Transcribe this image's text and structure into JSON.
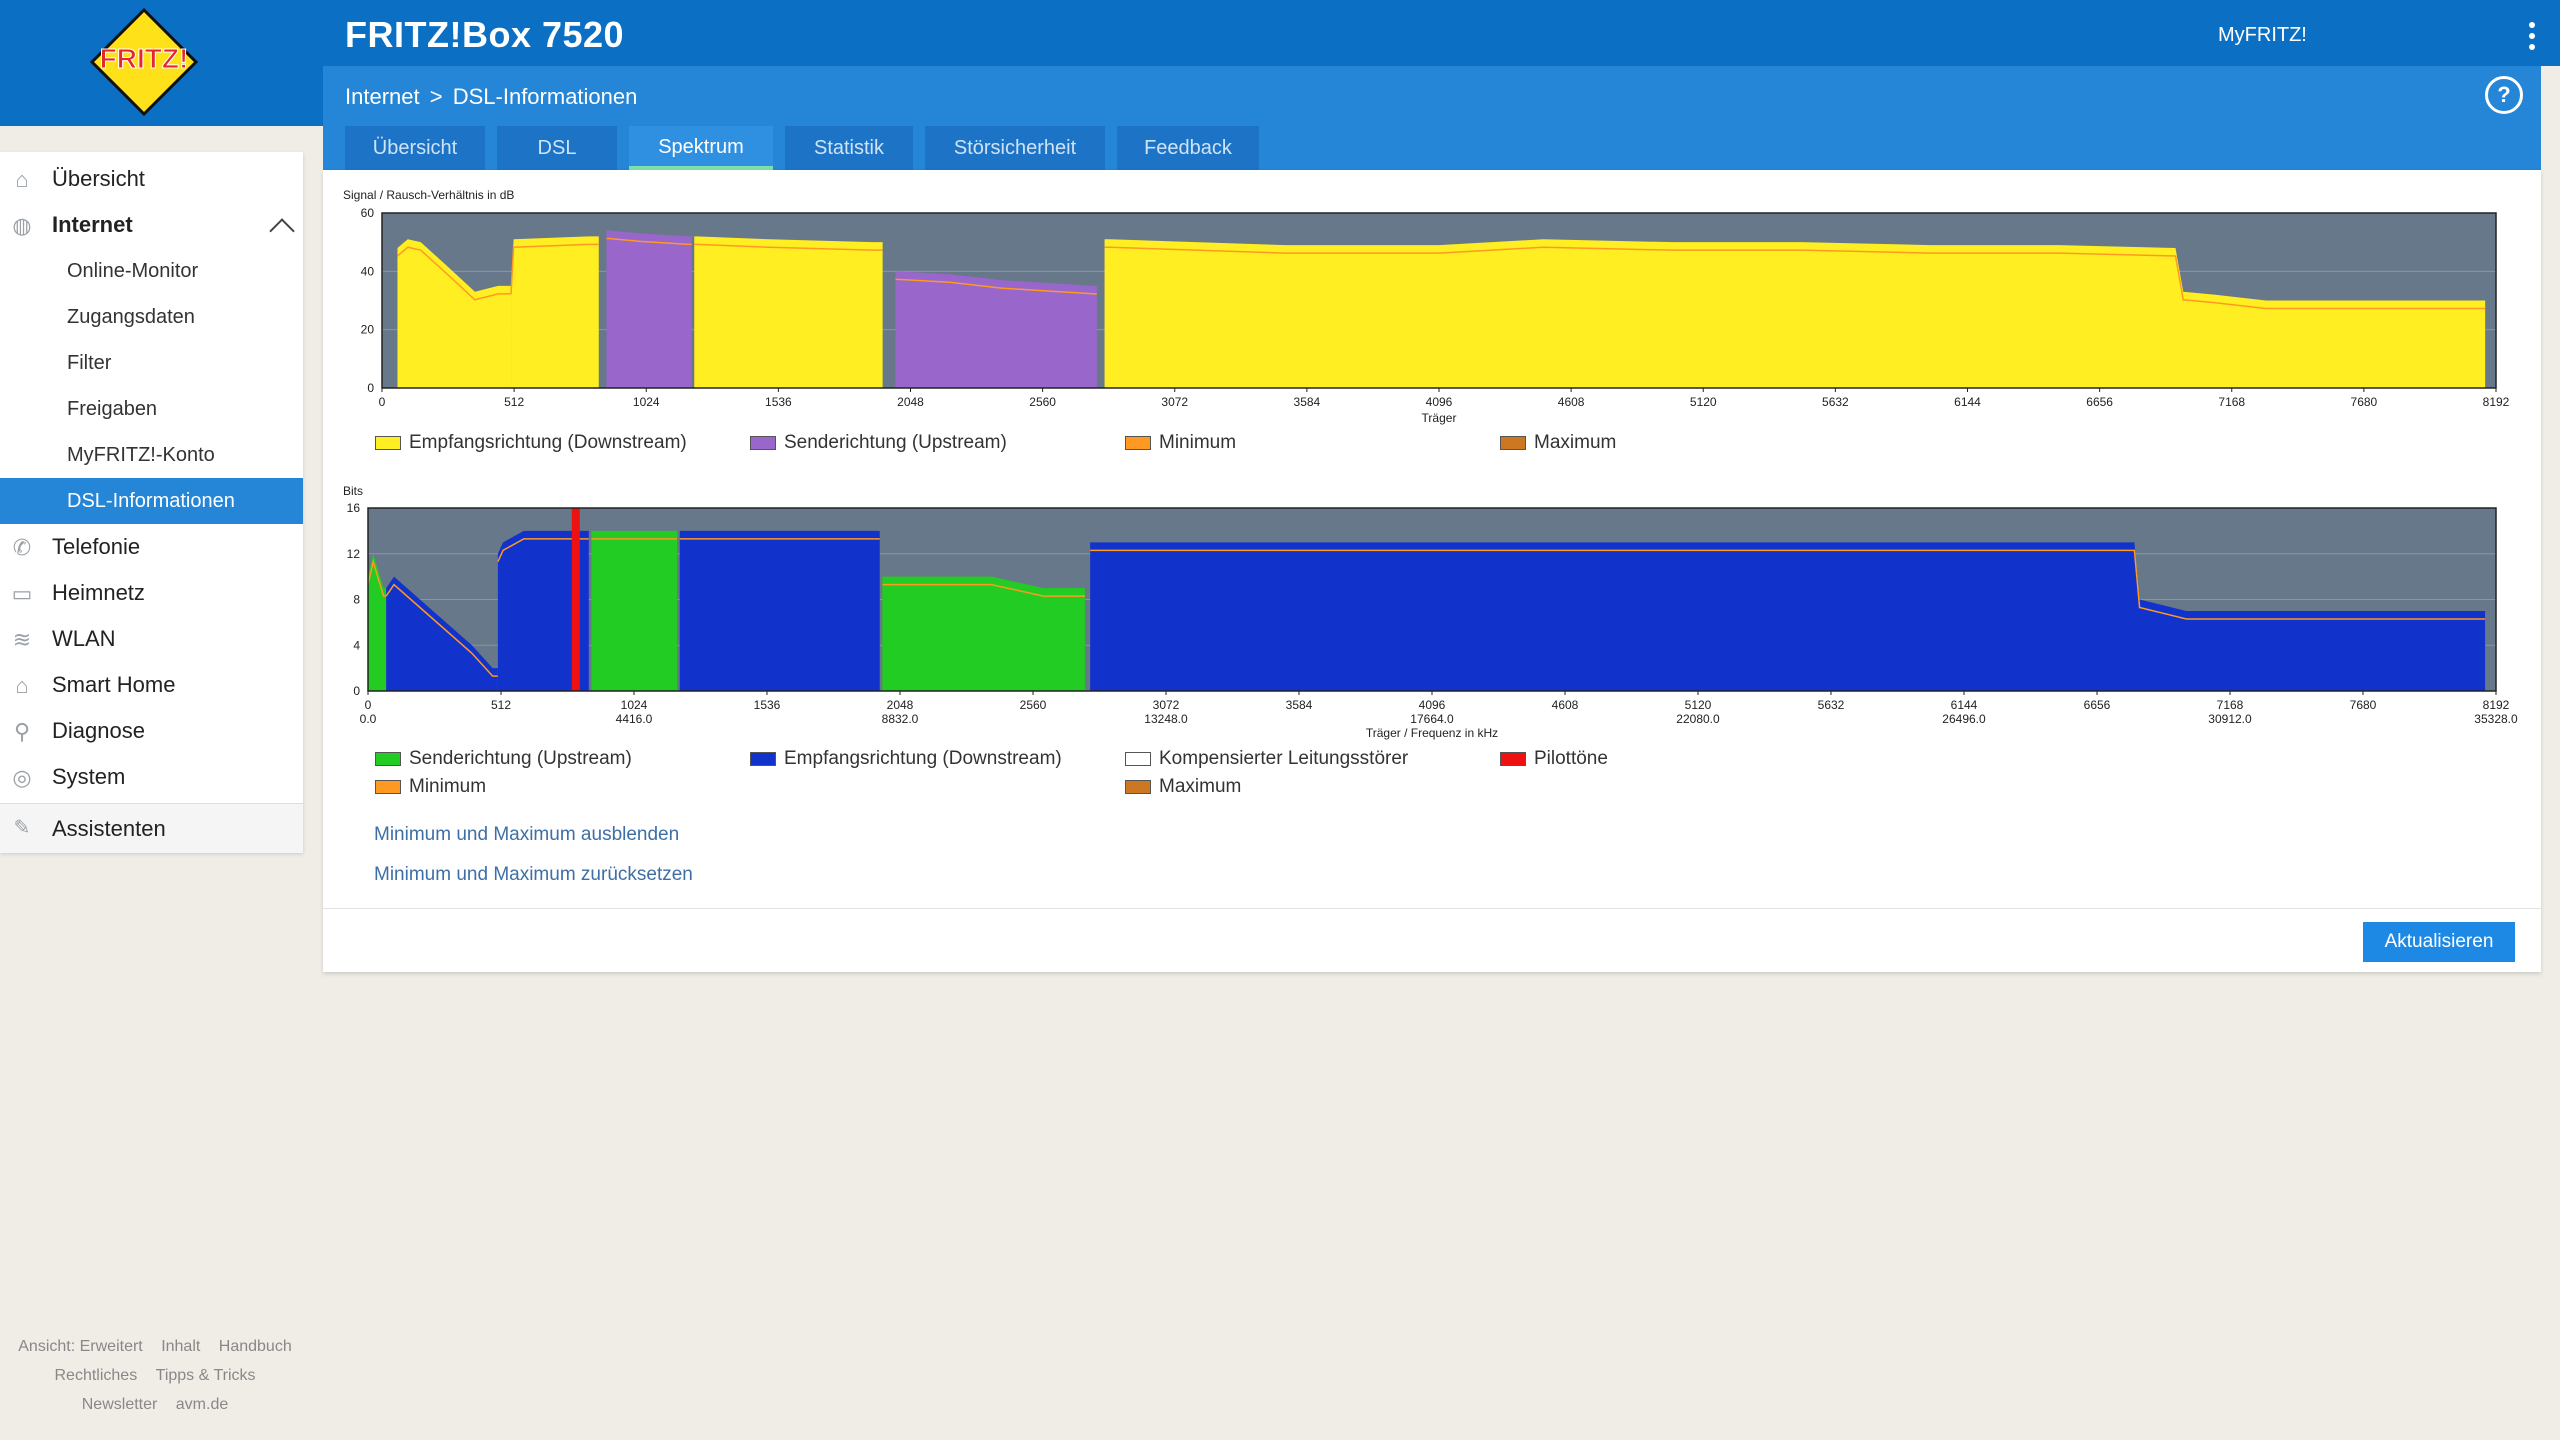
{
  "header": {
    "product": "FRITZ!Box 7520",
    "myfritz": "MyFRITZ!",
    "logo_text": "FRITZ!"
  },
  "breadcrumb": {
    "section": "Internet",
    "page": "DSL-Informationen",
    "separator": ">"
  },
  "help_label": "?",
  "tabs": [
    {
      "label": "Übersicht",
      "active": false
    },
    {
      "label": "DSL",
      "active": false
    },
    {
      "label": "Spektrum",
      "active": true
    },
    {
      "label": "Statistik",
      "active": false
    },
    {
      "label": "Störsicherheit",
      "active": false
    },
    {
      "label": "Feedback",
      "active": false
    }
  ],
  "sidebar": {
    "items": [
      {
        "label": "Übersicht",
        "icon": "home-icon"
      },
      {
        "label": "Internet",
        "icon": "globe-icon",
        "expanded": true
      },
      {
        "label": "Telefonie",
        "icon": "phone-icon"
      },
      {
        "label": "Heimnetz",
        "icon": "network-icon"
      },
      {
        "label": "WLAN",
        "icon": "wifi-icon"
      },
      {
        "label": "Smart Home",
        "icon": "smarthome-icon"
      },
      {
        "label": "Diagnose",
        "icon": "diagnose-icon"
      },
      {
        "label": "System",
        "icon": "system-icon"
      },
      {
        "label": "Assistenten",
        "icon": "wizard-icon"
      }
    ],
    "internet_sub": [
      {
        "label": "Online-Monitor"
      },
      {
        "label": "Zugangsdaten"
      },
      {
        "label": "Filter"
      },
      {
        "label": "Freigaben"
      },
      {
        "label": "MyFRITZ!-Konto"
      },
      {
        "label": "DSL-Informationen",
        "active": true
      }
    ]
  },
  "footer": {
    "row1": [
      "Ansicht: Erweitert",
      "Inhalt",
      "Handbuch"
    ],
    "row2": [
      "Rechtliches",
      "Tipps & Tricks"
    ],
    "row3": [
      "Newsletter",
      "avm.de"
    ]
  },
  "links": {
    "hide_minmax": "Minimum und Maximum ausblenden",
    "reset_minmax": "Minimum und Maximum zurücksetzen"
  },
  "buttons": {
    "refresh": "Aktualisieren"
  },
  "colors": {
    "downstream_snr": "#ffee22",
    "upstream_snr": "#9966cc",
    "minimum": "#ff9922",
    "maximum": "#cc7722",
    "bits_up": "#22cc22",
    "bits_down": "#1133cc",
    "compensated": "#ffffff",
    "pilot": "#ee1111",
    "plot_bg": "#67788a"
  },
  "chart_data": [
    {
      "type": "area",
      "ylabel": "Signal / Rausch-Verhältnis in dB",
      "xlabel": "Träger",
      "xlim": [
        0,
        8192
      ],
      "ylim": [
        0,
        60
      ],
      "yticks": [
        "0",
        "20",
        "40",
        "60"
      ],
      "xticks": [
        "0",
        "512",
        "1024",
        "1536",
        "2048",
        "2560",
        "3072",
        "3584",
        "4096",
        "4608",
        "5120",
        "5632",
        "6144",
        "6656",
        "7168",
        "7680",
        "8192"
      ],
      "legend": [
        {
          "label": "Empfangsrichtung (Downstream)",
          "color": "#ffee22"
        },
        {
          "label": "Senderichtung (Upstream)",
          "color": "#9966cc"
        },
        {
          "label": "Minimum",
          "color": "#ff9922"
        },
        {
          "label": "Maximum",
          "color": "#cc7722"
        }
      ],
      "series": [
        {
          "name": "Empfangsrichtung (Downstream)",
          "segments": [
            {
              "x": [
                60,
                100,
                150,
                250,
                360,
                450,
                500
              ],
              "y": [
                48,
                51,
                50,
                42,
                33,
                35,
                35
              ]
            },
            {
              "x": [
                500,
                510,
                800,
                840
              ],
              "y": [
                35,
                51,
                52,
                52
              ]
            },
            {
              "x": [
                1210,
                1220,
                1500,
                1900,
                1940
              ],
              "y": [
                52,
                52,
                51,
                50,
                50
              ]
            },
            {
              "x": [
                2800,
                2820,
                3500,
                4096,
                4500,
                5000,
                5500,
                6000,
                6500,
                6950,
                6980,
                7100,
                7300,
                7600,
                7800,
                8150
              ],
              "y": [
                51,
                51,
                49,
                49,
                51,
                50,
                50,
                49,
                49,
                48,
                33,
                32,
                30,
                30,
                30,
                30
              ]
            }
          ]
        },
        {
          "name": "Senderichtung (Upstream)",
          "segments": [
            {
              "x": [
                870,
                880,
                1000,
                1190,
                1200
              ],
              "y": [
                54,
                54,
                53,
                52,
                52
              ]
            },
            {
              "x": [
                1990,
                2000,
                2200,
                2400,
                2760,
                2770
              ],
              "y": [
                40,
                40,
                39,
                37,
                35,
                35
              ]
            }
          ]
        }
      ]
    },
    {
      "type": "area",
      "ylabel": "Bits",
      "xlabel": "Träger / Frequenz in kHz",
      "xlim": [
        0,
        8192
      ],
      "ylim": [
        0,
        16
      ],
      "yticks": [
        "0",
        "4",
        "8",
        "12",
        "16"
      ],
      "xticks": [
        "0",
        "512",
        "1024",
        "1536",
        "2048",
        "2560",
        "3072",
        "3584",
        "4096",
        "4608",
        "5120",
        "5632",
        "6144",
        "6656",
        "7168",
        "7680",
        "8192"
      ],
      "xticks_khz": [
        "0.0",
        "",
        "4416.0",
        "",
        "8832.0",
        "",
        "13248.0",
        "",
        "17664.0",
        "",
        "22080.0",
        "",
        "26496.0",
        "",
        "30912.0",
        "",
        "35328.0"
      ],
      "legend": [
        {
          "label": "Senderichtung (Upstream)",
          "color": "#22cc22"
        },
        {
          "label": "Empfangsrichtung (Downstream)",
          "color": "#1133cc"
        },
        {
          "label": "Kompensierter Leitungsstörer",
          "color": "#ffffff"
        },
        {
          "label": "Pilottöne",
          "color": "#ee1111"
        },
        {
          "label": "Minimum",
          "color": "#ff9922"
        },
        {
          "label": "Maximum",
          "color": "#cc7722"
        }
      ],
      "series": [
        {
          "name": "Senderichtung (Upstream)",
          "segments": [
            {
              "x": [
                0,
                20,
                60,
                70
              ],
              "y": [
                10,
                12,
                9,
                9
              ]
            },
            {
              "x": [
                860,
                870,
                1180,
                1190
              ],
              "y": [
                14,
                14,
                14,
                14
              ]
            },
            {
              "x": [
                1980,
                2000,
                2400,
                2600,
                2750,
                2760
              ],
              "y": [
                10,
                10,
                10,
                9,
                9,
                9
              ]
            }
          ]
        },
        {
          "name": "Empfangsrichtung (Downstream)",
          "segments": [
            {
              "x": [
                70,
                100,
                200,
                300,
                400,
                480,
                500
              ],
              "y": [
                9,
                10,
                8,
                6,
                4,
                2,
                2
              ]
            },
            {
              "x": [
                500,
                520,
                600,
                800,
                850
              ],
              "y": [
                12,
                13,
                14,
                14,
                14
              ]
            },
            {
              "x": [
                1200,
                1210,
                1960,
                1970
              ],
              "y": [
                14,
                14,
                14,
                14
              ]
            },
            {
              "x": [
                2780,
                2790,
                4096,
                5500,
                6800,
                6820,
                7000,
                7600,
                8150
              ],
              "y": [
                13,
                13,
                13,
                13,
                13,
                8,
                7,
                7,
                7
              ]
            }
          ]
        },
        {
          "name": "Pilottöne",
          "points": [
            {
              "x": 800,
              "y": 16
            }
          ]
        }
      ]
    }
  ]
}
